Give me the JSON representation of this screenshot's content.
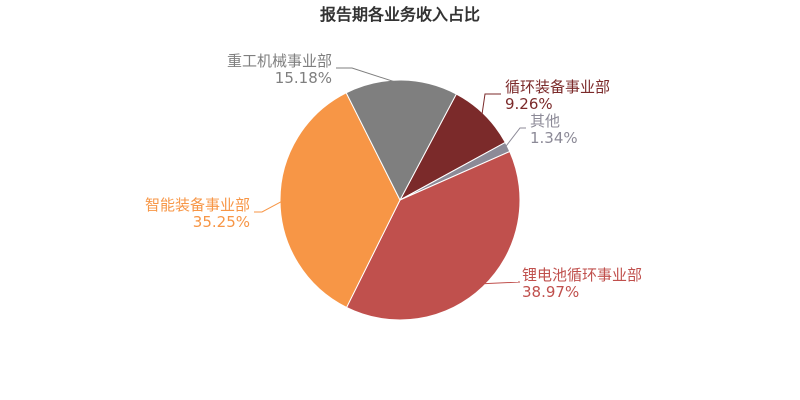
{
  "chart_data": {
    "type": "pie",
    "title": "报告期各业务收入占比",
    "slices": [
      {
        "name": "循环装备事业部",
        "value": 9.26,
        "pct_label": "9.26%",
        "color": "#7b2a2a"
      },
      {
        "name": "其他",
        "value": 1.34,
        "pct_label": "1.34%",
        "color": "#8c8a97"
      },
      {
        "name": "锂电池循环事业部",
        "value": 38.97,
        "pct_label": "38.97%",
        "color": "#c0504d"
      },
      {
        "name": "智能装备事业部",
        "value": 35.25,
        "pct_label": "35.25%",
        "color": "#f79646"
      },
      {
        "name": "重工机械事业部",
        "value": 15.18,
        "pct_label": "15.18%",
        "color": "#7f7f7f"
      }
    ],
    "legend": "none"
  }
}
